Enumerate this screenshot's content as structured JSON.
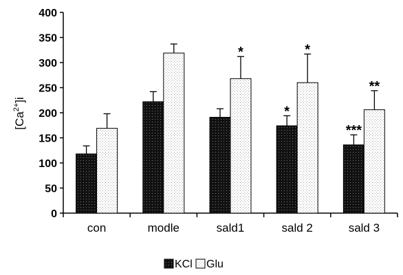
{
  "chart_data": {
    "type": "bar",
    "categories": [
      "con",
      "modle",
      "sald1",
      "sald 2",
      "sald 3"
    ],
    "series": [
      {
        "name": "KCl",
        "values": [
          118,
          222,
          191,
          174,
          136
        ],
        "errors": [
          16,
          20,
          17,
          20,
          20
        ],
        "color": "#1a1a1a"
      },
      {
        "name": "Glu",
        "values": [
          169,
          319,
          268,
          260,
          206
        ],
        "errors": [
          29,
          18,
          44,
          57,
          38
        ],
        "color": "#f0f0f0"
      }
    ],
    "significance": [
      {
        "series": "KCl",
        "category": "sald 2",
        "mark": "*"
      },
      {
        "series": "KCl",
        "category": "sald 3",
        "mark": "***"
      },
      {
        "series": "Glu",
        "category": "sald1",
        "mark": "*"
      },
      {
        "series": "Glu",
        "category": "sald 2",
        "mark": "*"
      },
      {
        "series": "Glu",
        "category": "sald 3",
        "mark": "**"
      }
    ],
    "ylabel_base": "[Ca",
    "ylabel_sup": "2+",
    "ylabel_tail": "]i",
    "xlabel": "",
    "title": "",
    "ylim": [
      0,
      400
    ],
    "yticks": [
      0,
      50,
      100,
      150,
      200,
      250,
      300,
      350,
      400
    ],
    "legend_position": "bottom-center",
    "grid": false
  }
}
